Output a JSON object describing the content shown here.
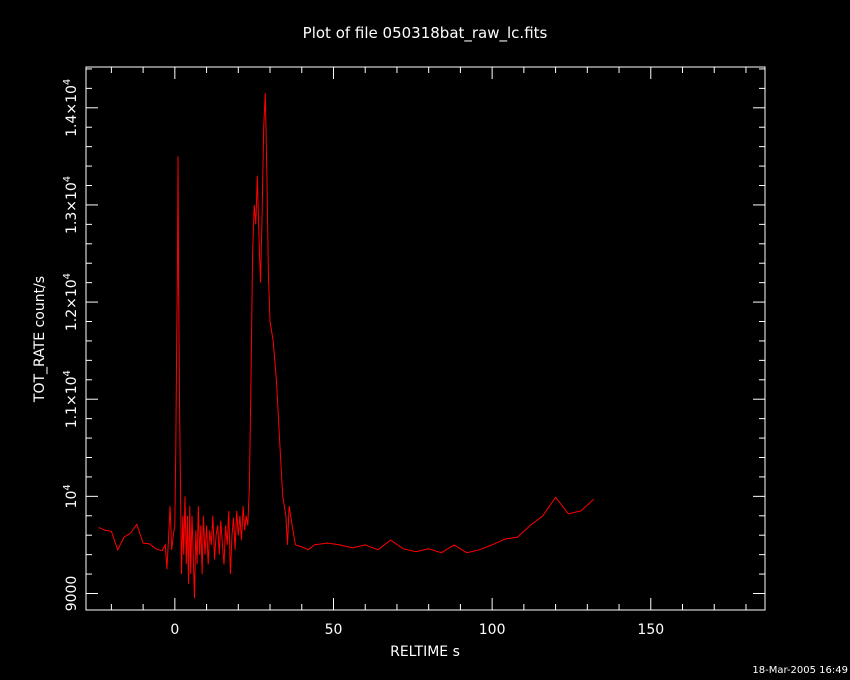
{
  "chart_data": {
    "type": "line",
    "title": "Plot of file 050318bat_raw_lc.fits",
    "xlabel": "RELTIME  s",
    "ylabel": "TOT_RATE  count/s",
    "xlim": [
      -28,
      186
    ],
    "ylim": [
      8830,
      14420
    ],
    "x_ticks": [
      0,
      50,
      100,
      150
    ],
    "y_ticks": [
      {
        "value": 9000,
        "base": "9000",
        "exp": ""
      },
      {
        "value": 10000,
        "base": "10",
        "exp": "4"
      },
      {
        "value": 11000,
        "base": "1.1×10",
        "exp": "4"
      },
      {
        "value": 12000,
        "base": "1.2×10",
        "exp": "4"
      },
      {
        "value": 13000,
        "base": "1.3×10",
        "exp": "4"
      },
      {
        "value": 14000,
        "base": "1.4×10",
        "exp": "4"
      }
    ],
    "grid": false,
    "series": [
      {
        "color": "#ff0000",
        "points": [
          [
            -24,
            9680
          ],
          [
            -22,
            9650
          ],
          [
            -20,
            9640
          ],
          [
            -18,
            9450
          ],
          [
            -16,
            9580
          ],
          [
            -14,
            9620
          ],
          [
            -12,
            9710
          ],
          [
            -10,
            9520
          ],
          [
            -8,
            9510
          ],
          [
            -6,
            9460
          ],
          [
            -4,
            9440
          ],
          [
            -3,
            9500
          ],
          [
            -2.5,
            9250
          ],
          [
            -2,
            9560
          ],
          [
            -1.5,
            9900
          ],
          [
            -1,
            9450
          ],
          [
            -0.5,
            9600
          ],
          [
            0,
            9700
          ],
          [
            0.3,
            10500
          ],
          [
            0.6,
            11600
          ],
          [
            0.8,
            12300
          ],
          [
            1,
            13500
          ],
          [
            1.2,
            12200
          ],
          [
            1.5,
            10900
          ],
          [
            1.8,
            10000
          ],
          [
            2.1,
            9200
          ],
          [
            2.5,
            9800
          ],
          [
            2.8,
            9400
          ],
          [
            3.2,
            10000
          ],
          [
            3.6,
            9300
          ],
          [
            4,
            9800
          ],
          [
            4.3,
            9100
          ],
          [
            4.7,
            9900
          ],
          [
            5,
            9200
          ],
          [
            5.4,
            9800
          ],
          [
            5.8,
            9400
          ],
          [
            6.2,
            8950
          ],
          [
            6.6,
            9650
          ],
          [
            7,
            9300
          ],
          [
            7.4,
            9900
          ],
          [
            7.8,
            9400
          ],
          [
            8.2,
            9700
          ],
          [
            8.6,
            9200
          ],
          [
            9,
            9800
          ],
          [
            9.5,
            9400
          ],
          [
            10,
            9700
          ],
          [
            10.5,
            9300
          ],
          [
            11,
            9650
          ],
          [
            11.5,
            9500
          ],
          [
            12,
            9800
          ],
          [
            12.5,
            9350
          ],
          [
            13,
            9600
          ],
          [
            13.5,
            9700
          ],
          [
            14,
            9400
          ],
          [
            14.5,
            9750
          ],
          [
            15,
            9500
          ],
          [
            15.5,
            9300
          ],
          [
            16,
            9700
          ],
          [
            16.5,
            9500
          ],
          [
            17,
            9850
          ],
          [
            17.5,
            9200
          ],
          [
            18,
            9600
          ],
          [
            18.5,
            9780
          ],
          [
            19,
            9450
          ],
          [
            19.5,
            9850
          ],
          [
            20,
            9600
          ],
          [
            20.5,
            9800
          ],
          [
            21,
            9550
          ],
          [
            21.5,
            9900
          ],
          [
            22,
            9650
          ],
          [
            22.5,
            9800
          ],
          [
            23,
            9700
          ],
          [
            23.5,
            10100
          ],
          [
            24,
            11200
          ],
          [
            24.5,
            12500
          ],
          [
            25,
            13000
          ],
          [
            25.5,
            12800
          ],
          [
            26,
            13300
          ],
          [
            26.5,
            12700
          ],
          [
            27,
            12200
          ],
          [
            27.5,
            12900
          ],
          [
            28,
            13800
          ],
          [
            28.5,
            14150
          ],
          [
            29,
            13300
          ],
          [
            29.5,
            12300
          ],
          [
            30,
            11800
          ],
          [
            30.5,
            11700
          ],
          [
            31,
            11600
          ],
          [
            32,
            11200
          ],
          [
            33,
            10600
          ],
          [
            34,
            10000
          ],
          [
            35,
            9800
          ],
          [
            35.5,
            9500
          ],
          [
            36,
            9900
          ],
          [
            37,
            9700
          ],
          [
            38,
            9500
          ],
          [
            40,
            9480
          ],
          [
            42,
            9450
          ],
          [
            44,
            9500
          ],
          [
            48,
            9520
          ],
          [
            52,
            9500
          ],
          [
            56,
            9470
          ],
          [
            60,
            9500
          ],
          [
            64,
            9450
          ],
          [
            68,
            9550
          ],
          [
            72,
            9460
          ],
          [
            76,
            9430
          ],
          [
            80,
            9460
          ],
          [
            84,
            9420
          ],
          [
            88,
            9500
          ],
          [
            92,
            9420
          ],
          [
            96,
            9450
          ],
          [
            100,
            9500
          ],
          [
            104,
            9560
          ],
          [
            108,
            9580
          ],
          [
            112,
            9700
          ],
          [
            116,
            9800
          ],
          [
            120,
            9990
          ],
          [
            124,
            9820
          ],
          [
            128,
            9850
          ],
          [
            132,
            9970
          ]
        ]
      }
    ]
  },
  "footer": {
    "timestamp": "18-Mar-2005 16:49"
  }
}
